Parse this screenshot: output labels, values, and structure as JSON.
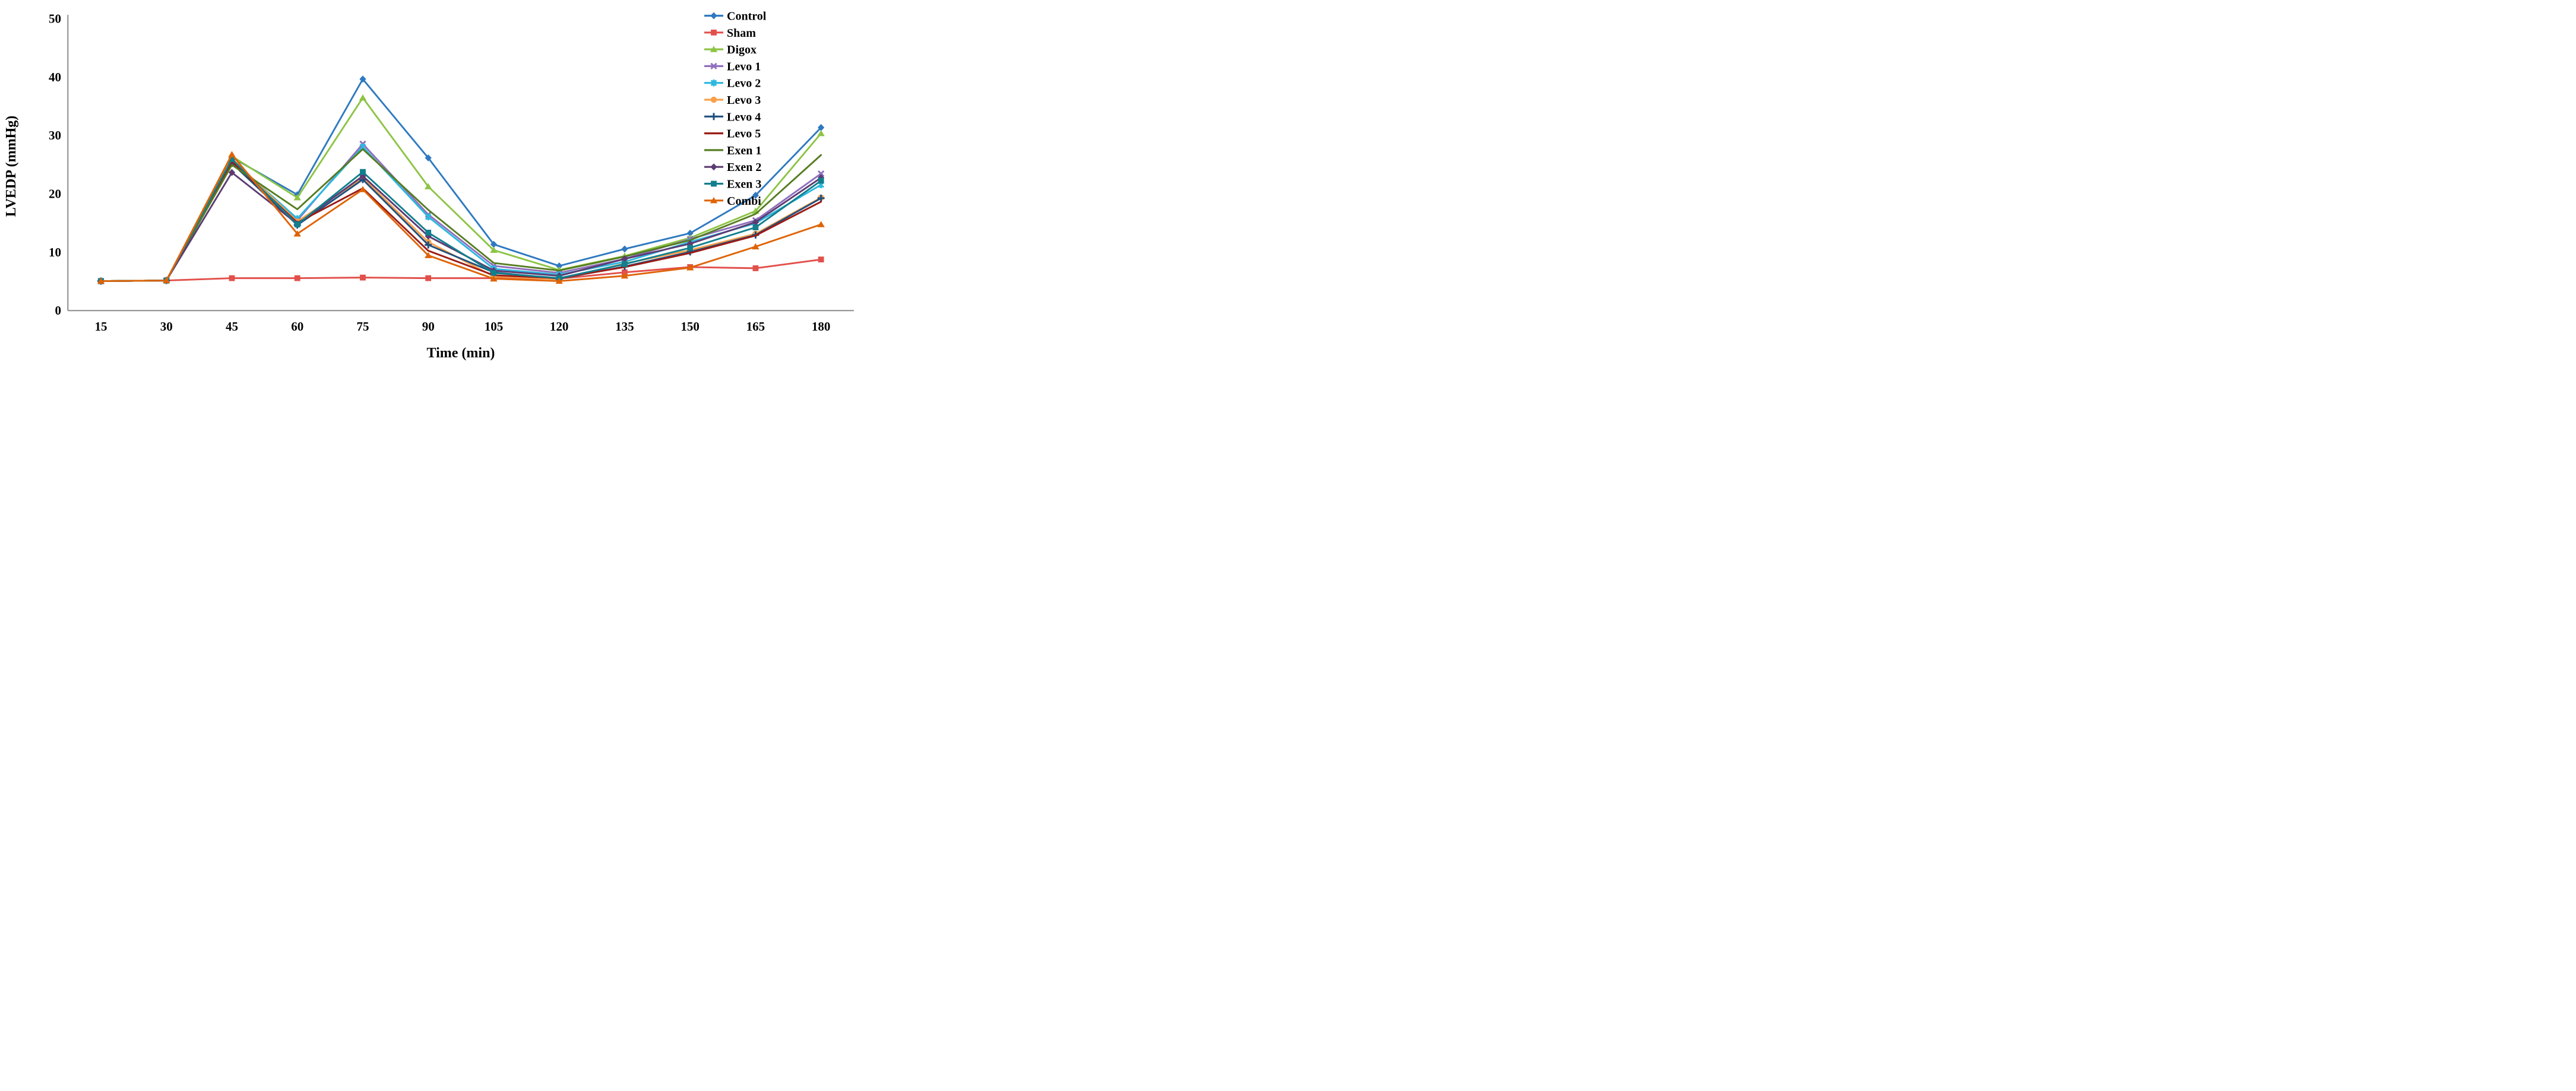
{
  "figure": {
    "background": "#ffffff",
    "axis_line_color": "#8c8c8c",
    "text_color": "#000000"
  },
  "chart_data": {
    "type": "line",
    "title": "",
    "xlabel": "Time (min)",
    "ylabel": "LVEDP (mmHg)",
    "x": [
      15,
      30,
      45,
      60,
      75,
      90,
      105,
      120,
      135,
      150,
      165,
      180
    ],
    "yticks": [
      0,
      10,
      20,
      30,
      40,
      50
    ],
    "ylim": [
      0,
      50
    ],
    "xlim_categories": "15 to 180 step 15",
    "grid": false,
    "legend_position": "top-right",
    "series": [
      {
        "name": "Control",
        "color": "#2E79C0",
        "marker": "diamond",
        "values": [
          5.0,
          5.1,
          26.2,
          19.8,
          39.6,
          26.1,
          11.3,
          7.6,
          10.5,
          13.2,
          19.7,
          31.3
        ]
      },
      {
        "name": "Sham",
        "color": "#E2504B",
        "marker": "square",
        "values": [
          5.0,
          5.1,
          5.5,
          5.5,
          5.6,
          5.5,
          5.5,
          5.4,
          6.5,
          7.4,
          7.2,
          8.7
        ]
      },
      {
        "name": "Digox",
        "color": "#8DC445",
        "marker": "triangle",
        "values": [
          5.0,
          5.1,
          26.4,
          19.3,
          36.4,
          21.2,
          10.3,
          6.9,
          9.3,
          12.4,
          17.0,
          30.3
        ]
      },
      {
        "name": "Levo 1",
        "color": "#8F6FBC",
        "marker": "x",
        "values": [
          5.0,
          5.1,
          25.4,
          15.4,
          28.5,
          16.4,
          7.6,
          6.4,
          8.8,
          12.2,
          15.4,
          23.4
        ]
      },
      {
        "name": "Levo 2",
        "color": "#2CB8DF",
        "marker": "asterisk",
        "values": [
          5.0,
          5.1,
          25.7,
          15.7,
          28.0,
          16.0,
          7.1,
          6.1,
          8.3,
          11.7,
          14.9,
          21.5
        ]
      },
      {
        "name": "Levo 3",
        "color": "#F9A04A",
        "marker": "circle",
        "values": [
          5.0,
          5.1,
          26.0,
          15.2,
          22.7,
          11.7,
          5.8,
          5.3,
          8.0,
          10.3,
          13.1,
          19.3
        ]
      },
      {
        "name": "Levo 4",
        "color": "#20507E",
        "marker": "plus",
        "values": [
          5.0,
          5.1,
          25.2,
          14.6,
          22.4,
          11.2,
          6.5,
          5.4,
          7.5,
          10.0,
          12.9,
          19.2
        ]
      },
      {
        "name": "Levo 5",
        "color": "#9B1B16",
        "marker": "none",
        "values": [
          5.0,
          5.1,
          25.5,
          15.0,
          20.9,
          10.2,
          6.0,
          5.5,
          7.4,
          9.8,
          12.8,
          18.6
        ]
      },
      {
        "name": "Exen 1",
        "color": "#567D21",
        "marker": "none",
        "values": [
          5.0,
          5.1,
          24.9,
          17.3,
          27.6,
          17.2,
          8.1,
          6.8,
          9.2,
          12.0,
          16.5,
          26.6
        ]
      },
      {
        "name": "Exen 2",
        "color": "#5C3B72",
        "marker": "diamond",
        "values": [
          5.0,
          5.1,
          23.6,
          14.8,
          23.0,
          12.7,
          6.8,
          5.9,
          8.8,
          11.4,
          15.1,
          22.7
        ]
      },
      {
        "name": "Exen 3",
        "color": "#117F8D",
        "marker": "square",
        "values": [
          5.0,
          5.1,
          25.9,
          14.7,
          23.7,
          13.3,
          6.4,
          5.5,
          7.9,
          10.7,
          14.2,
          22.2
        ]
      },
      {
        "name": "Combi",
        "color": "#DE6408",
        "marker": "triangle",
        "values": [
          5.0,
          5.1,
          26.7,
          13.1,
          20.7,
          9.4,
          5.4,
          5.0,
          5.9,
          7.3,
          10.9,
          14.7
        ]
      }
    ]
  }
}
